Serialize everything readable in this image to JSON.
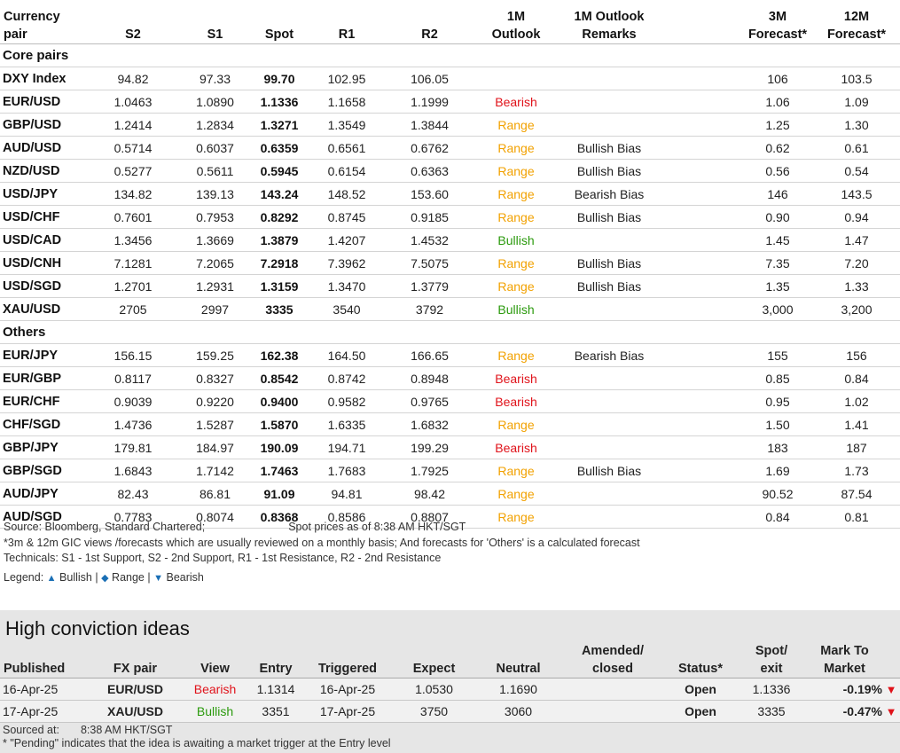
{
  "header": {
    "pair": [
      "Currency",
      "pair"
    ],
    "s2": "S2",
    "s1": "S1",
    "spot": "Spot",
    "r1": "R1",
    "r2": "R2",
    "outlook": [
      "1M",
      "Outlook"
    ],
    "remarks": [
      "1M Outlook",
      "Remarks"
    ],
    "f3m": [
      "3M",
      "Forecast*"
    ],
    "f12m": [
      "12M",
      "Forecast*"
    ]
  },
  "sections": [
    {
      "title": "Core pairs",
      "rows": [
        {
          "pair": "DXY Index",
          "s2": "94.82",
          "s1": "97.33",
          "spot": "99.70",
          "r1": "102.95",
          "r2": "106.05",
          "outlook": "",
          "remarks": "",
          "f3m": "106",
          "f12m": "103.5"
        },
        {
          "pair": "EUR/USD",
          "s2": "1.0463",
          "s1": "1.0890",
          "spot": "1.1336",
          "r1": "1.1658",
          "r2": "1.1999",
          "outlook": "Bearish",
          "remarks": "",
          "f3m": "1.06",
          "f12m": "1.09"
        },
        {
          "pair": "GBP/USD",
          "s2": "1.2414",
          "s1": "1.2834",
          "spot": "1.3271",
          "r1": "1.3549",
          "r2": "1.3844",
          "outlook": "Range",
          "remarks": "",
          "f3m": "1.25",
          "f12m": "1.30"
        },
        {
          "pair": "AUD/USD",
          "s2": "0.5714",
          "s1": "0.6037",
          "spot": "0.6359",
          "r1": "0.6561",
          "r2": "0.6762",
          "outlook": "Range",
          "remarks": "Bullish Bias",
          "f3m": "0.62",
          "f12m": "0.61"
        },
        {
          "pair": "NZD/USD",
          "s2": "0.5277",
          "s1": "0.5611",
          "spot": "0.5945",
          "r1": "0.6154",
          "r2": "0.6363",
          "outlook": "Range",
          "remarks": "Bullish Bias",
          "f3m": "0.56",
          "f12m": "0.54"
        },
        {
          "pair": "USD/JPY",
          "s2": "134.82",
          "s1": "139.13",
          "spot": "143.24",
          "r1": "148.52",
          "r2": "153.60",
          "outlook": "Range",
          "remarks": "Bearish Bias",
          "f3m": "146",
          "f12m": "143.5"
        },
        {
          "pair": "USD/CHF",
          "s2": "0.7601",
          "s1": "0.7953",
          "spot": "0.8292",
          "r1": "0.8745",
          "r2": "0.9185",
          "outlook": "Range",
          "remarks": "Bullish Bias",
          "f3m": "0.90",
          "f12m": "0.94"
        },
        {
          "pair": "USD/CAD",
          "s2": "1.3456",
          "s1": "1.3669",
          "spot": "1.3879",
          "r1": "1.4207",
          "r2": "1.4532",
          "outlook": "Bullish",
          "remarks": "",
          "f3m": "1.45",
          "f12m": "1.47"
        },
        {
          "pair": "USD/CNH",
          "s2": "7.1281",
          "s1": "7.2065",
          "spot": "7.2918",
          "r1": "7.3962",
          "r2": "7.5075",
          "outlook": "Range",
          "remarks": "Bullish Bias",
          "f3m": "7.35",
          "f12m": "7.20"
        },
        {
          "pair": "USD/SGD",
          "s2": "1.2701",
          "s1": "1.2931",
          "spot": "1.3159",
          "r1": "1.3470",
          "r2": "1.3779",
          "outlook": "Range",
          "remarks": "Bullish Bias",
          "f3m": "1.35",
          "f12m": "1.33"
        },
        {
          "pair": "XAU/USD",
          "s2": "2705",
          "s1": "2997",
          "spot": "3335",
          "r1": "3540",
          "r2": "3792",
          "outlook": "Bullish",
          "remarks": "",
          "f3m": "3,000",
          "f12m": "3,200"
        }
      ]
    },
    {
      "title": "Others",
      "rows": [
        {
          "pair": "EUR/JPY",
          "s2": "156.15",
          "s1": "159.25",
          "spot": "162.38",
          "r1": "164.50",
          "r2": "166.65",
          "outlook": "Range",
          "remarks": "Bearish Bias",
          "f3m": "155",
          "f12m": "156"
        },
        {
          "pair": "EUR/GBP",
          "s2": "0.8117",
          "s1": "0.8327",
          "spot": "0.8542",
          "r1": "0.8742",
          "r2": "0.8948",
          "outlook": "Bearish",
          "remarks": "",
          "f3m": "0.85",
          "f12m": "0.84"
        },
        {
          "pair": "EUR/CHF",
          "s2": "0.9039",
          "s1": "0.9220",
          "spot": "0.9400",
          "r1": "0.9582",
          "r2": "0.9765",
          "outlook": "Bearish",
          "remarks": "",
          "f3m": "0.95",
          "f12m": "1.02"
        },
        {
          "pair": "CHF/SGD",
          "s2": "1.4736",
          "s1": "1.5287",
          "spot": "1.5870",
          "r1": "1.6335",
          "r2": "1.6832",
          "outlook": "Range",
          "remarks": "",
          "f3m": "1.50",
          "f12m": "1.41"
        },
        {
          "pair": "GBP/JPY",
          "s2": "179.81",
          "s1": "184.97",
          "spot": "190.09",
          "r1": "194.71",
          "r2": "199.29",
          "outlook": "Bearish",
          "remarks": "",
          "f3m": "183",
          "f12m": "187"
        },
        {
          "pair": "GBP/SGD",
          "s2": "1.6843",
          "s1": "1.7142",
          "spot": "1.7463",
          "r1": "1.7683",
          "r2": "1.7925",
          "outlook": "Range",
          "remarks": "Bullish Bias",
          "f3m": "1.69",
          "f12m": "1.73"
        },
        {
          "pair": "AUD/JPY",
          "s2": "82.43",
          "s1": "86.81",
          "spot": "91.09",
          "r1": "94.81",
          "r2": "98.42",
          "outlook": "Range",
          "remarks": "",
          "f3m": "90.52",
          "f12m": "87.54"
        },
        {
          "pair": "AUD/SGD",
          "s2": "0.7783",
          "s1": "0.8074",
          "spot": "0.8368",
          "r1": "0.8586",
          "r2": "0.8807",
          "outlook": "Range",
          "remarks": "",
          "f3m": "0.84",
          "f12m": "0.81"
        }
      ]
    }
  ],
  "notes": {
    "source": "Source: Bloomberg, Standard Chartered;",
    "spot_time": "Spot prices as of 8:38 AM HKT/SGT",
    "line2": "*3m & 12m GIC views /forecasts which are usually reviewed on a monthly basis; And forecasts for 'Others' is a calculated forecast",
    "line3": "Technicals: S1 - 1st Support, S2 - 2nd Support, R1 - 1st Resistance, R2 - 2nd Resistance",
    "legend_label": "Legend:",
    "legend_bullish": "Bullish",
    "legend_range": "Range",
    "legend_bearish": "Bearish",
    "sep": "|"
  },
  "high_conviction": {
    "title": "High conviction ideas",
    "headers": {
      "published": "Published",
      "fx_pair": "FX pair",
      "view": "View",
      "entry": "Entry",
      "triggered": "Triggered",
      "expect": "Expect",
      "neutral": "Neutral",
      "amended": [
        "Amended/",
        "closed"
      ],
      "status": "Status*",
      "spot_exit": [
        "Spot/",
        "exit"
      ],
      "mtm": [
        "Mark To",
        "Market"
      ]
    },
    "rows": [
      {
        "published": "16-Apr-25",
        "pair": "EUR/USD",
        "view": "Bearish",
        "entry": "1.1314",
        "triggered": "16-Apr-25",
        "expect": "1.0530",
        "neutral": "1.1690",
        "amended": "",
        "status": "Open",
        "spot_exit": "1.1336",
        "mtm": "-0.19%"
      },
      {
        "published": "17-Apr-25",
        "pair": "XAU/USD",
        "view": "Bullish",
        "entry": "3351",
        "triggered": "17-Apr-25",
        "expect": "3750",
        "neutral": "3060",
        "amended": "",
        "status": "Open",
        "spot_exit": "3335",
        "mtm": "-0.47%"
      }
    ],
    "footer": {
      "sourced_label": "Sourced at:",
      "sourced_time": "8:38 AM HKT/SGT",
      "pending_note": "* \"Pending\" indicates that the idea is awaiting a market trigger at the Entry level"
    }
  },
  "colors": {
    "bearish": "#e0121a",
    "range": "#f2a100",
    "bullish": "#2b9a0d",
    "legend_icon": "#1a6fb5"
  }
}
